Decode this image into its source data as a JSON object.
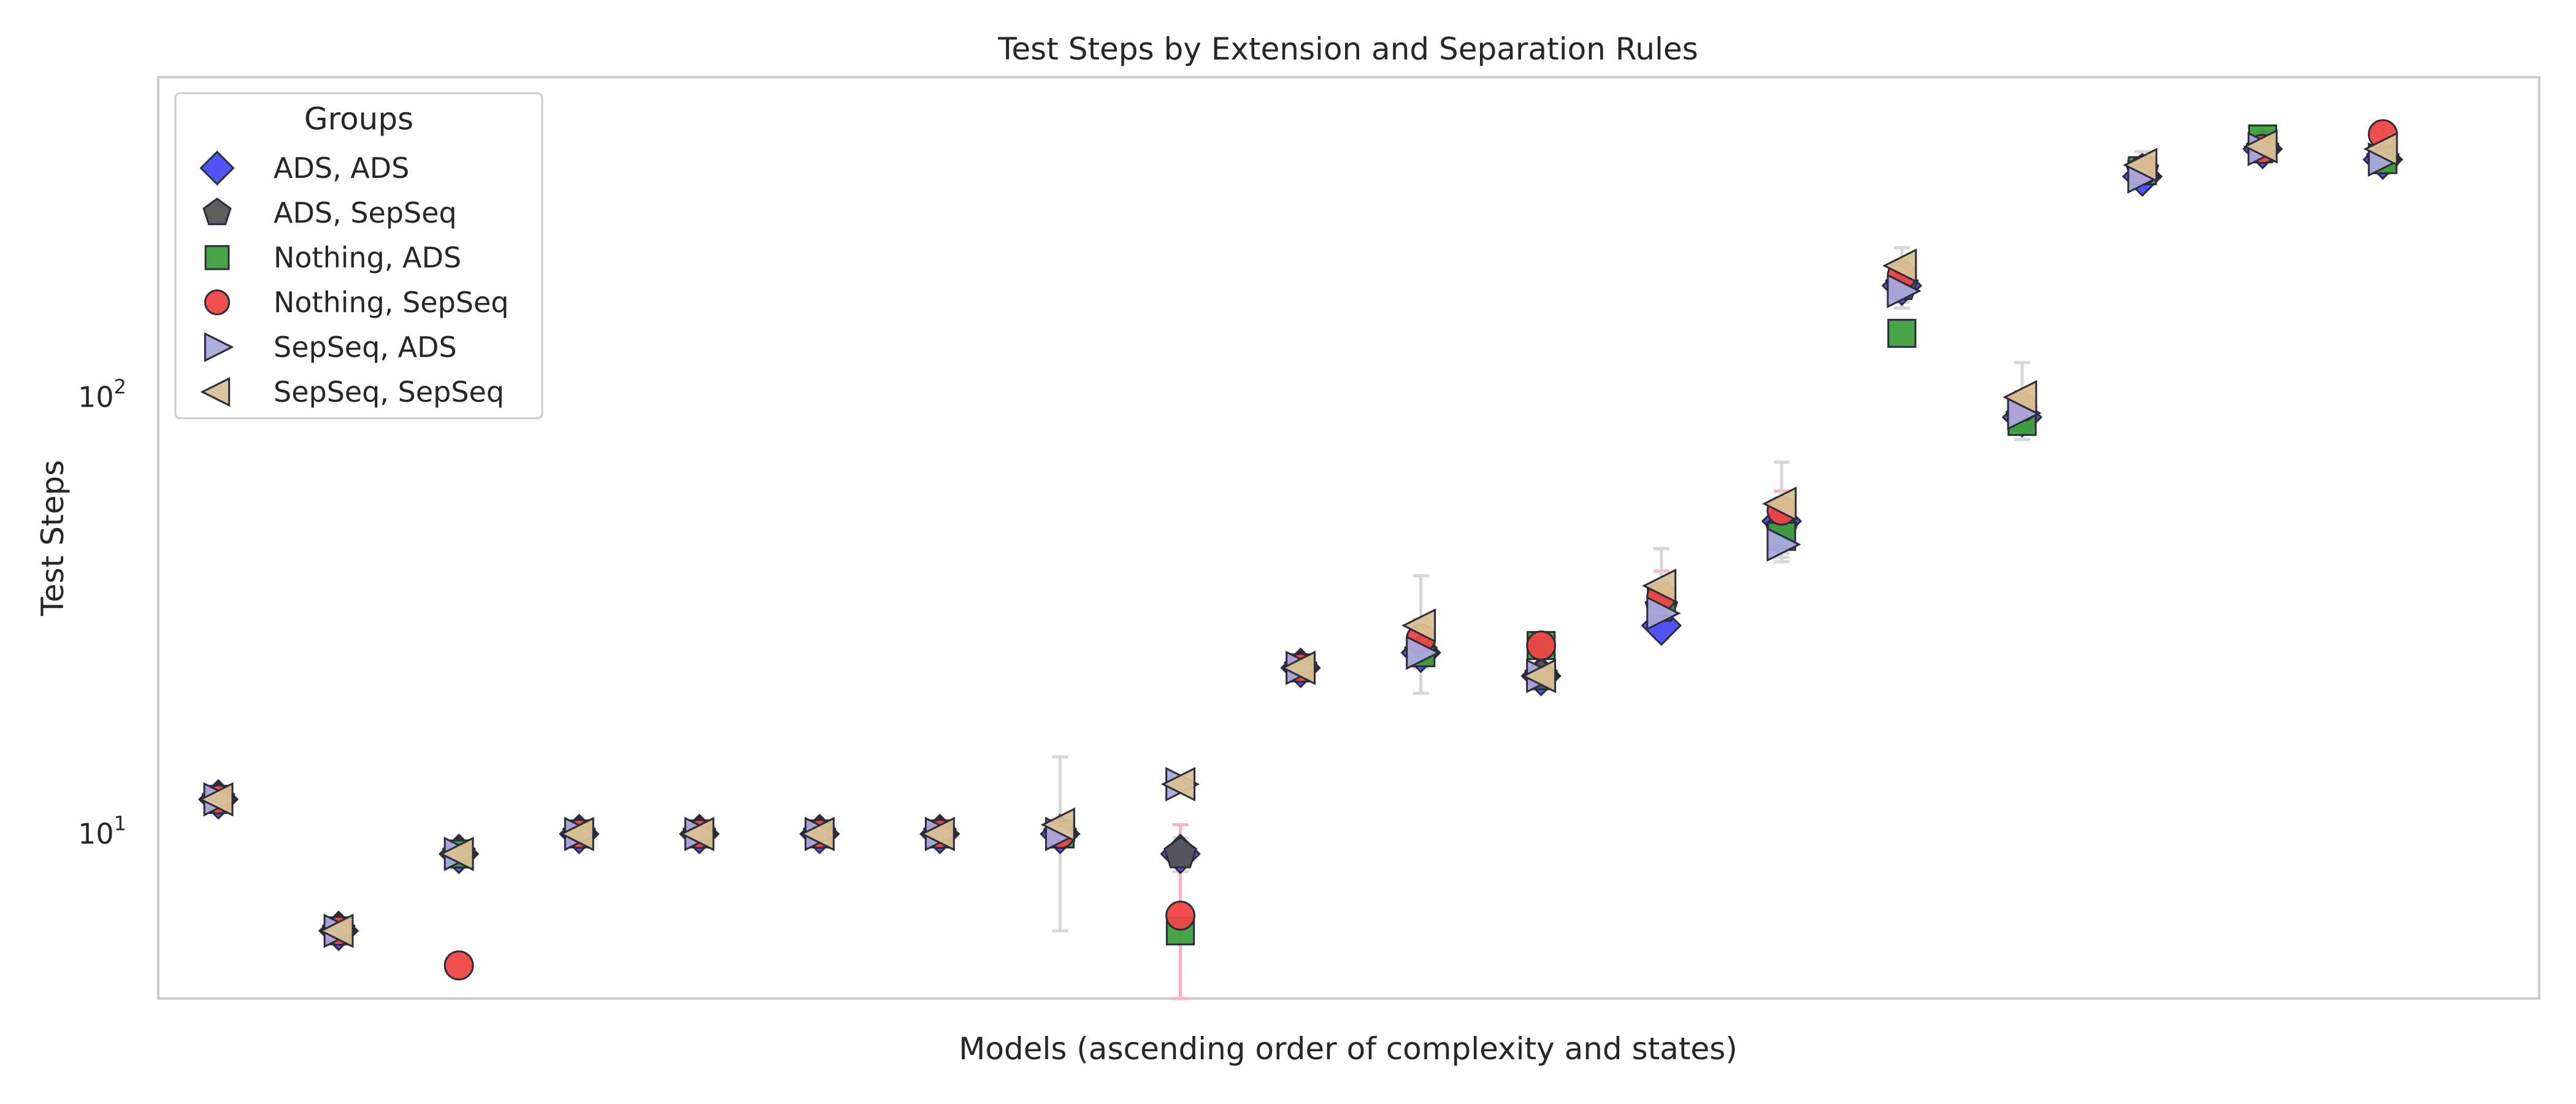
{
  "chart_data": {
    "type": "scatter",
    "title": "Test Steps by Extension and Separation Rules",
    "xlabel": "Models (ascending order of complexity and states)",
    "ylabel": "Test Steps",
    "yscale": "log",
    "ylim": [
      4.2,
      540
    ],
    "yticks": [
      10,
      100
    ],
    "ytick_labels": [
      {
        "base": "10",
        "exp": "1"
      },
      {
        "base": "10",
        "exp": "2"
      }
    ],
    "xlim": [
      -0.5,
      19.3
    ],
    "grid": false,
    "legend": {
      "title": "Groups",
      "placement": "upper-left"
    },
    "series": [
      {
        "name": "ADS, ADS",
        "marker": "diamond",
        "color": "#4B4BF5",
        "values": [
          12,
          6,
          9,
          10,
          10,
          10,
          10,
          10,
          9,
          24,
          26,
          23,
          30,
          52,
          180,
          90,
          320,
          370,
          350
        ],
        "err": [
          0,
          0,
          0,
          0,
          0,
          0,
          0,
          0,
          0.8,
          0,
          1.5,
          0,
          2,
          4,
          15,
          5,
          20,
          20,
          20
        ]
      },
      {
        "name": "ADS, SepSeq",
        "marker": "pentagon",
        "color": "#555555",
        "values": [
          12,
          6,
          9,
          10,
          10,
          10,
          10,
          10,
          9,
          24,
          26,
          23,
          33,
          50,
          180,
          90,
          330,
          370,
          350
        ],
        "err": [
          0,
          0,
          0,
          0,
          0,
          0,
          0,
          0,
          0,
          0,
          2,
          0,
          3,
          5,
          15,
          5,
          20,
          20,
          20
        ]
      },
      {
        "name": "Nothing, ADS",
        "marker": "square",
        "color": "#3F9E3F",
        "values": [
          12,
          6,
          9,
          10,
          10,
          10,
          10,
          10,
          6,
          24,
          26,
          27,
          34,
          48,
          140,
          88,
          330,
          390,
          350
        ],
        "err": [
          0,
          0,
          0,
          0,
          0,
          0,
          0,
          0,
          0,
          0,
          2,
          0,
          3,
          4,
          5,
          5,
          15,
          15,
          15
        ]
      },
      {
        "name": "Nothing, SepSeq",
        "marker": "circle",
        "color": "#F04545",
        "values": [
          12,
          6,
          5,
          10,
          10,
          10,
          10,
          10,
          6.5,
          24,
          28,
          27,
          35,
          55,
          190,
          95,
          330,
          370,
          400
        ],
        "err": [
          0,
          0,
          0,
          0,
          0,
          0,
          0,
          0,
          4,
          0,
          3,
          0,
          5,
          6,
          15,
          8,
          20,
          20,
          20
        ]
      },
      {
        "name": "SepSeq, ADS",
        "marker": "triangle-right",
        "color": "#A9A9DC",
        "values": [
          12,
          6,
          9,
          10,
          10,
          10,
          10,
          10,
          13,
          24,
          26,
          23,
          32,
          46,
          175,
          92,
          320,
          370,
          350
        ],
        "err": [
          0,
          0,
          0,
          0,
          0,
          0,
          0,
          0,
          0,
          0,
          2,
          0,
          3,
          4,
          15,
          6,
          20,
          20,
          25
        ]
      },
      {
        "name": "SepSeq, SepSeq",
        "marker": "triangle-left",
        "color": "#D9C193",
        "values": [
          12,
          6,
          9,
          10,
          10,
          10,
          10,
          10.5,
          13,
          24,
          30,
          23,
          37,
          57,
          200,
          100,
          340,
          375,
          370
        ],
        "err": [
          0,
          0,
          0,
          0,
          0,
          0,
          0,
          4.5,
          0,
          0,
          9,
          0,
          8,
          14,
          20,
          20,
          25,
          25,
          25
        ]
      }
    ],
    "error_colors": [
      "#d6d6d6",
      "#d6d6d6",
      "#d6d6d6",
      "#f5b3c3",
      "#d6d6d6",
      "#d6d6d6"
    ]
  }
}
